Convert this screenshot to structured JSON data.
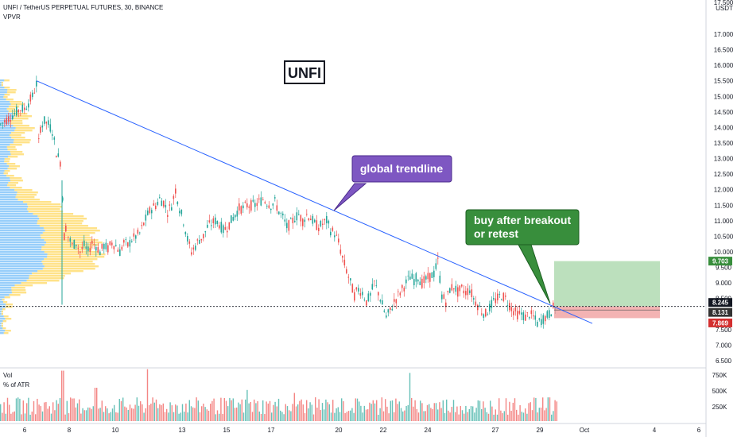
{
  "header": {
    "title": "UNFI / TetherUS PERPETUAL FUTURES, 30, BINANCE",
    "indicator": "VPVR"
  },
  "volume_pane": {
    "label": "Vol",
    "sublabel": "% of ATR",
    "y_ticks": [
      "750K",
      "500K",
      "250K"
    ]
  },
  "annotations": {
    "logo_text": "UNFI",
    "callout_trendline": "global trendline",
    "callout_buy_line1": "buy after breakout",
    "callout_buy_line2": "or retest"
  },
  "colors": {
    "up": "#26a69a",
    "down": "#ef5350",
    "trendline": "#2962ff",
    "callout_purple": "#7e57c2",
    "callout_green": "#388e3c",
    "vpvr_blue": "#42a5f5",
    "vpvr_yellow": "#ffca28",
    "target_zone": "#a5d6a7",
    "stop_zone": "#ef9a9a"
  },
  "chart_data": {
    "type": "candlestick",
    "price_axis": {
      "unit": "USDT",
      "ylim": [
        6.5,
        17.5
      ],
      "ticks": [
        "17.000",
        "16.500",
        "16.000",
        "15.500",
        "15.000",
        "14.500",
        "14.000",
        "13.500",
        "13.000",
        "12.500",
        "12.000",
        "11.500",
        "11.000",
        "10.500",
        "10.000",
        "9.500",
        "9.000",
        "8.500",
        "8.000",
        "7.500",
        "7.000",
        "6.500"
      ],
      "top_partial_label": "17.500"
    },
    "x_axis": {
      "ticks": [
        "6",
        "8",
        "10",
        "13",
        "15",
        "17",
        "20",
        "22",
        "24",
        "27",
        "29",
        "Oct",
        "4",
        "6"
      ]
    },
    "price_path": [
      [
        0,
        14.1
      ],
      [
        5,
        14.2
      ],
      [
        10,
        14.3
      ],
      [
        15,
        14.4
      ],
      [
        20,
        14.5
      ],
      [
        25,
        14.6
      ],
      [
        30,
        14.6
      ],
      [
        35,
        14.8
      ],
      [
        40,
        15.0
      ],
      [
        45,
        15.4
      ],
      [
        48,
        13.5
      ],
      [
        50,
        14.0
      ],
      [
        55,
        14.2
      ],
      [
        60,
        14.1
      ],
      [
        65,
        13.9
      ],
      [
        70,
        13.2
      ],
      [
        75,
        12.9
      ],
      [
        78,
        11.8
      ],
      [
        80,
        10.5
      ],
      [
        82,
        10.8
      ],
      [
        85,
        10.5
      ],
      [
        90,
        10.2
      ],
      [
        95,
        10.3
      ],
      [
        100,
        10.0
      ],
      [
        105,
        10.2
      ],
      [
        110,
        10.0
      ],
      [
        115,
        10.3
      ],
      [
        120,
        10.2
      ],
      [
        125,
        10.0
      ],
      [
        130,
        10.2
      ],
      [
        135,
        10.1
      ],
      [
        140,
        10.3
      ],
      [
        145,
        10.2
      ],
      [
        150,
        10.0
      ],
      [
        155,
        10.3
      ],
      [
        160,
        10.2
      ],
      [
        165,
        10.4
      ],
      [
        170,
        10.5
      ],
      [
        175,
        10.6
      ],
      [
        180,
        10.9
      ],
      [
        185,
        11.2
      ],
      [
        190,
        11.4
      ],
      [
        195,
        11.5
      ],
      [
        200,
        11.7
      ],
      [
        205,
        11.6
      ],
      [
        210,
        11.3
      ],
      [
        215,
        11.5
      ],
      [
        220,
        12.0
      ],
      [
        225,
        11.4
      ],
      [
        230,
        11.0
      ],
      [
        235,
        10.4
      ],
      [
        240,
        10.0
      ],
      [
        245,
        10.2
      ],
      [
        250,
        10.4
      ],
      [
        255,
        10.5
      ],
      [
        260,
        10.8
      ],
      [
        265,
        10.9
      ],
      [
        270,
        11.0
      ],
      [
        275,
        10.9
      ],
      [
        280,
        10.7
      ],
      [
        285,
        10.8
      ],
      [
        290,
        11.0
      ],
      [
        295,
        11.2
      ],
      [
        300,
        11.4
      ],
      [
        305,
        11.4
      ],
      [
        310,
        11.5
      ],
      [
        315,
        11.5
      ],
      [
        320,
        11.5
      ],
      [
        325,
        11.6
      ],
      [
        330,
        11.7
      ],
      [
        335,
        11.6
      ],
      [
        340,
        11.5
      ],
      [
        345,
        11.6
      ],
      [
        350,
        11.3
      ],
      [
        355,
        11.1
      ],
      [
        360,
        10.8
      ],
      [
        365,
        10.9
      ],
      [
        370,
        11.1
      ],
      [
        375,
        11.2
      ],
      [
        380,
        11.0
      ],
      [
        385,
        11.2
      ],
      [
        390,
        11.1
      ],
      [
        395,
        10.9
      ],
      [
        400,
        10.8
      ],
      [
        405,
        10.9
      ],
      [
        410,
        11.0
      ],
      [
        415,
        10.7
      ],
      [
        420,
        10.6
      ],
      [
        425,
        10.3
      ],
      [
        430,
        9.8
      ],
      [
        435,
        9.4
      ],
      [
        440,
        9.0
      ],
      [
        445,
        8.6
      ],
      [
        450,
        8.8
      ],
      [
        455,
        8.7
      ],
      [
        460,
        8.4
      ],
      [
        465,
        8.6
      ],
      [
        470,
        9.0
      ],
      [
        475,
        8.7
      ],
      [
        480,
        8.3
      ],
      [
        485,
        7.9
      ],
      [
        490,
        8.1
      ],
      [
        495,
        8.4
      ],
      [
        500,
        8.6
      ],
      [
        505,
        8.8
      ],
      [
        510,
        9.0
      ],
      [
        515,
        9.2
      ],
      [
        520,
        9.1
      ],
      [
        525,
        9.2
      ],
      [
        530,
        9.0
      ],
      [
        535,
        9.1
      ],
      [
        540,
        9.2
      ],
      [
        545,
        9.3
      ],
      [
        550,
        9.7
      ],
      [
        555,
        8.6
      ],
      [
        560,
        8.4
      ],
      [
        565,
        8.8
      ],
      [
        570,
        8.9
      ],
      [
        575,
        8.7
      ],
      [
        580,
        8.8
      ],
      [
        585,
        8.7
      ],
      [
        590,
        8.8
      ],
      [
        595,
        8.5
      ],
      [
        600,
        8.3
      ],
      [
        605,
        8.1
      ],
      [
        610,
        8.0
      ],
      [
        615,
        8.2
      ],
      [
        620,
        8.4
      ],
      [
        625,
        8.5
      ],
      [
        630,
        8.6
      ],
      [
        635,
        8.5
      ],
      [
        640,
        8.3
      ],
      [
        645,
        8.1
      ],
      [
        650,
        8.0
      ],
      [
        655,
        8.0
      ],
      [
        660,
        7.9
      ],
      [
        665,
        8.0
      ],
      [
        670,
        7.9
      ],
      [
        675,
        7.7
      ],
      [
        680,
        7.8
      ],
      [
        685,
        7.9
      ],
      [
        690,
        8.0
      ],
      [
        695,
        8.2
      ],
      [
        700,
        8.25
      ]
    ],
    "volume_spikes_K": [
      [
        78,
        680
      ],
      [
        120,
        450
      ],
      [
        185,
        700
      ],
      [
        310,
        420
      ],
      [
        370,
        380
      ],
      [
        480,
        320
      ],
      [
        515,
        650
      ],
      [
        600,
        280
      ],
      [
        640,
        260
      ],
      [
        690,
        320
      ]
    ],
    "trendline": {
      "from": [
        46,
        15.5
      ],
      "to": [
        745,
        7.7
      ]
    },
    "horizontal_level": 8.245,
    "trade_box": {
      "x_start": 697,
      "x_end": 830,
      "entry": 8.245,
      "target": 9.703,
      "stop": 7.869,
      "inner_level": 8.131
    },
    "price_badges": [
      {
        "text": "9.703",
        "value": 9.703,
        "bg": "#388e3c",
        "fg": "#ffffff"
      },
      {
        "text": "8.245",
        "value": 8.245,
        "bg": "#131722",
        "fg": "#ffffff"
      },
      {
        "text": "8.131",
        "value": 8.131,
        "bg": "#333333",
        "fg": "#ffffff"
      },
      {
        "text": "7.869",
        "value": 7.869,
        "bg": "#d32f2f",
        "fg": "#ffffff"
      }
    ]
  }
}
